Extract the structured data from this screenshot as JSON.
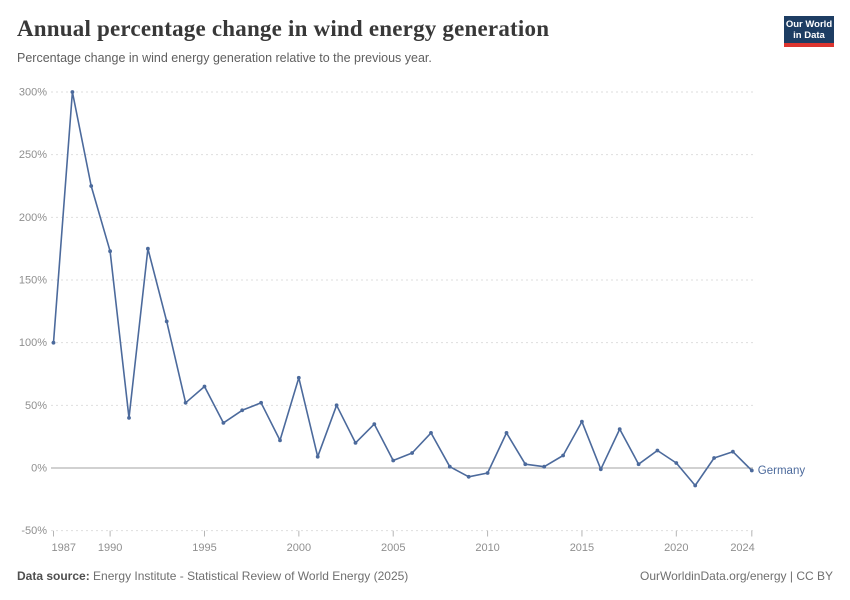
{
  "header": {
    "title": "Annual percentage change in wind energy generation",
    "subtitle": "Percentage change in wind energy generation relative to the previous year.",
    "logo": {
      "line1": "Our World",
      "line2": "in Data"
    }
  },
  "chart_data": {
    "type": "line",
    "title": "Annual percentage change in wind energy generation",
    "subtitle": "Percentage change in wind energy generation relative to the previous year.",
    "x": [
      1987,
      1988,
      1989,
      1990,
      1991,
      1992,
      1993,
      1994,
      1995,
      1996,
      1997,
      1998,
      1999,
      2000,
      2001,
      2002,
      2003,
      2004,
      2005,
      2006,
      2007,
      2008,
      2009,
      2010,
      2011,
      2012,
      2013,
      2014,
      2015,
      2016,
      2017,
      2018,
      2019,
      2020,
      2021,
      2022,
      2023,
      2024
    ],
    "series": [
      {
        "name": "Germany",
        "values": [
          100,
          300,
          225,
          173,
          40,
          175,
          117,
          52,
          65,
          36,
          46,
          52,
          22,
          72,
          9,
          50,
          20,
          35,
          6,
          12,
          28,
          1,
          -7,
          -4,
          28,
          3,
          1,
          10,
          37,
          -1,
          31,
          3,
          14,
          4,
          -14,
          8,
          13,
          -2
        ]
      }
    ],
    "xlabel": "",
    "ylabel": "",
    "ylim": [
      -50,
      300
    ],
    "yticks": [
      -50,
      0,
      50,
      100,
      150,
      200,
      250,
      300
    ],
    "ytick_suffix": "%",
    "xticks": [
      1987,
      1990,
      1995,
      2000,
      2005,
      2010,
      2015,
      2020,
      2024
    ],
    "grid": "horizontal-dashed",
    "legend_position": "line-end-label"
  },
  "footer": {
    "source_label": "Data source:",
    "source_text": "Energy Institute - Statistical Review of World Energy (2025)",
    "right_text": "OurWorldinData.org/energy | CC BY"
  },
  "colors": {
    "series_line": "#4c6a9c",
    "logo_navy": "#1d3d63",
    "logo_red": "#dc352f",
    "zero_axis": "#a3a3a3",
    "gridline": "#dedede"
  }
}
